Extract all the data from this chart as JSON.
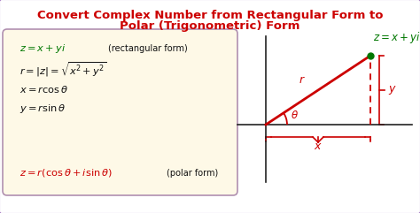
{
  "title_line1": "Convert Complex Number from Rectangular Form to",
  "title_line2": "Polar (Trigonometric) Form",
  "title_color": "#cc0000",
  "bg_color": "#ffffff",
  "box_bg_color": "#fef9e7",
  "box_edge_color": "#b090b0",
  "formula_color_green": "#007700",
  "formula_color_red": "#cc0000",
  "formula_color_black": "#111111",
  "diagram_red": "#cc0000",
  "diagram_green": "#007700",
  "diagram_axis_color": "#333333",
  "border_color": "#9966bb"
}
